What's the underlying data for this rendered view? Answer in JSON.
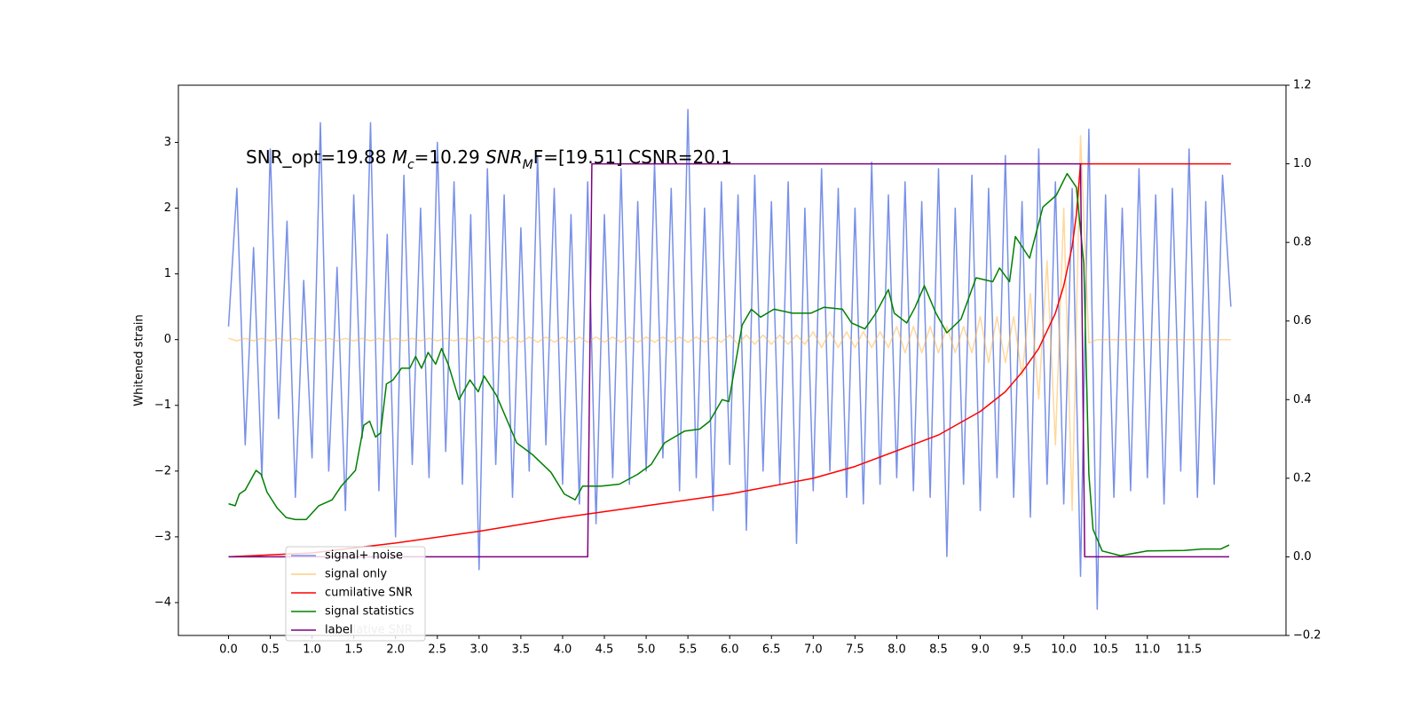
{
  "chart_data": {
    "type": "line",
    "annotation": [
      "SNR_opt=19.88 ",
      "M",
      "c",
      "=10.29  ",
      "SNR",
      "M",
      "F=[19.51] CSNR=20.1"
    ],
    "ylabel": "Whitened strain",
    "xlim": [
      -0.6,
      12.66
    ],
    "xticks": [
      {
        "value": 0,
        "label": "0.0"
      },
      0.5,
      {
        "value": 1,
        "label": "1.0"
      },
      1.5,
      {
        "value": 2,
        "label": "2.0"
      },
      2.5,
      {
        "value": 3,
        "label": "3.0"
      },
      3.5,
      {
        "value": 4,
        "label": "4.0"
      },
      4.5,
      {
        "value": 5,
        "label": "5.0"
      },
      5.5,
      {
        "value": 6,
        "label": "6.0"
      },
      6.5,
      {
        "value": 7,
        "label": "7.0"
      },
      7.5,
      {
        "value": 8,
        "label": "8.0"
      },
      8.5,
      {
        "value": 9,
        "label": "9.0"
      },
      9.5,
      {
        "value": 10,
        "label": "10.0"
      },
      10.5,
      {
        "value": 11,
        "label": "11.0"
      },
      11.5
    ],
    "ylim": [
      -4.5,
      3.87
    ],
    "yticks": [
      {
        "value": -4,
        "label": "−4"
      },
      {
        "value": -3,
        "label": "−3"
      },
      {
        "value": -2,
        "label": "−2"
      },
      {
        "value": -1,
        "label": "−1"
      },
      0,
      1,
      2,
      3
    ],
    "y2lim": [
      -0.2,
      1.2
    ],
    "y2ticks": [
      {
        "value": -0.2,
        "label": "−0.2"
      },
      {
        "value": 0,
        "label": "0.0"
      },
      0.2,
      0.4,
      0.6,
      0.8,
      {
        "value": 1,
        "label": "1.0"
      },
      1.2
    ],
    "legend": "lower left",
    "legend_ghost": "cumilative SNR",
    "x": [
      0,
      0.1,
      0.2,
      0.3,
      0.4,
      0.5,
      0.6,
      0.7,
      0.8,
      0.9,
      1,
      1.1,
      1.2,
      1.3,
      1.4,
      1.5,
      1.6,
      1.7,
      1.8,
      1.9,
      2,
      2.1,
      2.2,
      2.3,
      2.4,
      2.5,
      2.6,
      2.7,
      2.8,
      2.9,
      3,
      3.1,
      3.2,
      3.3,
      3.4,
      3.5,
      3.6,
      3.7,
      3.8,
      3.9,
      4,
      4.1,
      4.2,
      4.3,
      4.4,
      4.5,
      4.6,
      4.7,
      4.8,
      4.9,
      5,
      5.1,
      5.2,
      5.3,
      5.4,
      5.5,
      5.6,
      5.7,
      5.8,
      5.9,
      6,
      6.1,
      6.2,
      6.3,
      6.4,
      6.5,
      6.6,
      6.7,
      6.8,
      6.9,
      7,
      7.1,
      7.2,
      7.3,
      7.4,
      7.5,
      7.6,
      7.7,
      7.8,
      7.9,
      8,
      8.1,
      8.2,
      8.3,
      8.4,
      8.5,
      8.6,
      8.7,
      8.8,
      8.9,
      9,
      9.1,
      9.2,
      9.3,
      9.4,
      9.5,
      9.6,
      9.7,
      9.8,
      9.9,
      10,
      10.1,
      10.2,
      10.3,
      10.4,
      10.5,
      10.6,
      10.7,
      10.8,
      10.9,
      11,
      11.1,
      11.2,
      11.3,
      11.4,
      11.5,
      11.6,
      11.7,
      11.8,
      11.9,
      12
    ],
    "series": [
      {
        "name": "signal+ noise",
        "color": "#7890e8",
        "axis": "y",
        "values": [
          0.2,
          2.3,
          -1.6,
          1.4,
          -2.1,
          2.9,
          -1.2,
          1.8,
          -2.4,
          0.9,
          -1.8,
          3.3,
          -2.0,
          1.1,
          -2.6,
          2.2,
          -1.5,
          3.3,
          -2.3,
          1.6,
          -3.0,
          2.5,
          -1.9,
          2.0,
          -2.1,
          3.0,
          -1.7,
          2.4,
          -2.2,
          1.9,
          -3.5,
          2.6,
          -1.9,
          2.2,
          -2.4,
          1.7,
          -2.0,
          2.8,
          -1.6,
          2.3,
          -2.2,
          1.9,
          -2.5,
          2.4,
          -2.8,
          1.9,
          -2.1,
          2.6,
          -2.2,
          2.1,
          -2.0,
          2.7,
          -1.8,
          2.3,
          -2.3,
          3.5,
          -2.1,
          2.0,
          -2.6,
          2.4,
          -1.9,
          2.2,
          -2.9,
          2.5,
          -2.0,
          2.1,
          -2.2,
          2.4,
          -3.1,
          2.0,
          -2.3,
          2.6,
          -2.0,
          2.3,
          -2.4,
          2.0,
          -2.5,
          2.7,
          -2.2,
          2.2,
          -2.1,
          2.4,
          -2.3,
          2.1,
          -2.4,
          2.6,
          -3.3,
          2.0,
          -2.2,
          2.5,
          -2.6,
          2.3,
          -2.1,
          2.8,
          -2.4,
          2.1,
          -2.7,
          2.9,
          -2.2,
          2.4,
          -2.5,
          2.3,
          -3.6,
          3.2,
          -4.1,
          2.2,
          -2.4,
          2.0,
          -2.3,
          2.6,
          -2.1,
          2.2,
          -2.5,
          2.3,
          -2.0,
          2.9,
          -2.4,
          2.1,
          -2.2,
          2.5,
          0.5
        ]
      },
      {
        "name": "signal only",
        "color": "#ffb84d",
        "axis": "y",
        "values": [
          0.02,
          -0.02,
          0.02,
          -0.02,
          0.02,
          -0.02,
          0.02,
          -0.02,
          0.02,
          -0.02,
          0.02,
          -0.02,
          0.02,
          -0.02,
          0.02,
          -0.02,
          0.02,
          -0.02,
          0.02,
          -0.02,
          0.02,
          -0.02,
          0.02,
          -0.02,
          0.02,
          -0.02,
          0.02,
          -0.02,
          0.02,
          -0.02,
          0.04,
          -0.04,
          0.04,
          -0.04,
          0.04,
          -0.04,
          0.04,
          -0.04,
          0.04,
          -0.04,
          0.04,
          -0.04,
          0.04,
          -0.04,
          0.04,
          -0.04,
          0.04,
          -0.04,
          0.04,
          -0.04,
          0.04,
          -0.04,
          0.04,
          -0.04,
          0.04,
          -0.04,
          0.04,
          -0.04,
          0.04,
          -0.04,
          0.07,
          -0.07,
          0.07,
          -0.07,
          0.07,
          -0.07,
          0.07,
          -0.07,
          0.07,
          -0.07,
          0.12,
          -0.12,
          0.12,
          -0.12,
          0.12,
          -0.12,
          0.12,
          -0.12,
          0.12,
          -0.12,
          0.2,
          -0.2,
          0.2,
          -0.2,
          0.2,
          -0.2,
          0.2,
          -0.2,
          0.2,
          -0.2,
          0.35,
          -0.35,
          0.35,
          -0.35,
          0.35,
          -0.55,
          0.7,
          -0.9,
          1.2,
          -1.6,
          2.0,
          -2.6,
          3.1,
          -0.05,
          0,
          0,
          0,
          0,
          0,
          0,
          0,
          0,
          0,
          0,
          0,
          0,
          0,
          0,
          0,
          0,
          0
        ]
      },
      {
        "name": "cumilative SNR",
        "color": "#ff0000",
        "axis": "y2",
        "x": [
          0,
          1,
          2,
          3,
          4,
          5,
          6,
          7,
          7.5,
          8,
          8.5,
          9,
          9.3,
          9.5,
          9.7,
          9.9,
          10.0,
          10.1,
          10.15,
          10.2,
          10.25,
          12.0
        ],
        "values": [
          0,
          0.01,
          0.035,
          0.065,
          0.1,
          0.13,
          0.16,
          0.2,
          0.23,
          0.27,
          0.31,
          0.37,
          0.42,
          0.47,
          0.53,
          0.62,
          0.69,
          0.79,
          0.87,
          1.0,
          1.0,
          1.0
        ]
      },
      {
        "name": "signal statistics",
        "color": "#008000",
        "axis": "y2",
        "x": [
          0,
          0.08,
          0.13,
          0.2,
          0.33,
          0.39,
          0.46,
          0.58,
          0.69,
          0.8,
          0.93,
          1.08,
          1.24,
          1.35,
          1.52,
          1.62,
          1.69,
          1.76,
          1.82,
          1.89,
          1.97,
          2.07,
          2.17,
          2.24,
          2.31,
          2.39,
          2.48,
          2.55,
          2.63,
          2.76,
          2.89,
          2.99,
          3.06,
          3.21,
          3.29,
          3.45,
          3.64,
          3.86,
          4.02,
          4.15,
          4.24,
          4.46,
          4.68,
          4.9,
          5.06,
          5.22,
          5.46,
          5.64,
          5.76,
          5.91,
          5.99,
          6.15,
          6.26,
          6.37,
          6.53,
          6.75,
          6.97,
          7.13,
          7.35,
          7.46,
          7.62,
          7.75,
          7.9,
          7.97,
          8.12,
          8.22,
          8.33,
          8.47,
          8.6,
          8.77,
          8.95,
          9.15,
          9.23,
          9.35,
          9.42,
          9.59,
          9.75,
          9.91,
          10.04,
          10.15,
          10.24,
          10.3,
          10.35,
          10.46,
          10.68,
          11.0,
          11.44,
          11.66,
          11.88,
          11.98
        ],
        "values": [
          0.135,
          0.13,
          0.16,
          0.17,
          0.22,
          0.21,
          0.165,
          0.125,
          0.1,
          0.095,
          0.095,
          0.13,
          0.145,
          0.18,
          0.22,
          0.335,
          0.345,
          0.305,
          0.315,
          0.44,
          0.45,
          0.48,
          0.48,
          0.51,
          0.48,
          0.52,
          0.49,
          0.53,
          0.49,
          0.4,
          0.45,
          0.42,
          0.46,
          0.41,
          0.37,
          0.29,
          0.26,
          0.215,
          0.16,
          0.145,
          0.18,
          0.18,
          0.185,
          0.21,
          0.235,
          0.29,
          0.32,
          0.325,
          0.345,
          0.4,
          0.395,
          0.59,
          0.63,
          0.61,
          0.63,
          0.62,
          0.62,
          0.635,
          0.63,
          0.595,
          0.58,
          0.62,
          0.68,
          0.62,
          0.595,
          0.635,
          0.69,
          0.62,
          0.57,
          0.605,
          0.71,
          0.7,
          0.735,
          0.7,
          0.815,
          0.76,
          0.89,
          0.92,
          0.975,
          0.94,
          0.745,
          0.21,
          0.07,
          0.015,
          0.003,
          0.015,
          0.016,
          0.02,
          0.02,
          0.03
        ]
      },
      {
        "name": "label",
        "color": "#800080",
        "axis": "y2",
        "x": [
          0,
          4.3,
          4.35,
          10.2,
          10.25,
          11.98
        ],
        "values": [
          0,
          0,
          1,
          1,
          0,
          0
        ]
      }
    ]
  }
}
